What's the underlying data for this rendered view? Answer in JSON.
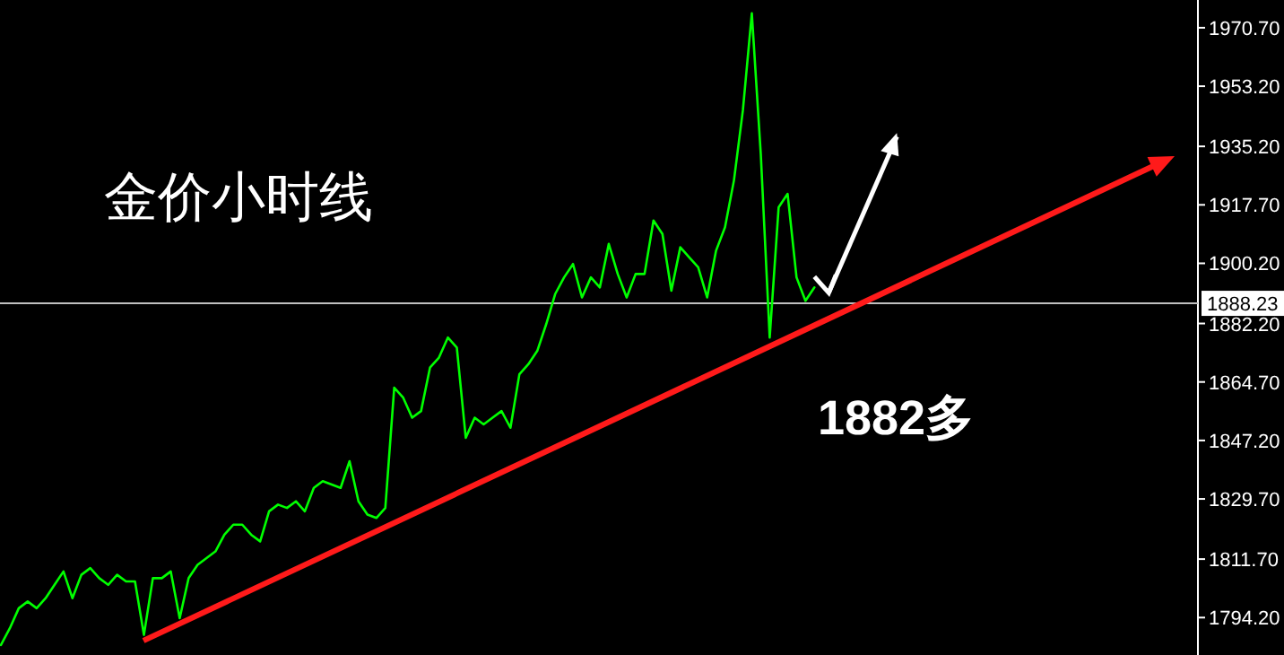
{
  "chart_data": {
    "type": "line",
    "title": "金价小时线",
    "annotations": [
      "1882多"
    ],
    "categories": [
      null,
      null,
      null,
      null,
      null,
      null,
      null,
      null,
      null,
      null,
      null,
      null,
      null,
      null,
      null,
      null,
      null,
      null,
      null,
      null,
      null,
      null,
      null,
      null,
      null,
      null,
      null,
      null,
      null,
      null,
      null,
      null,
      null,
      null,
      null,
      null,
      null,
      null,
      null,
      null,
      null,
      null,
      null,
      null,
      null,
      null,
      null,
      null,
      null,
      null,
      null,
      null,
      null,
      null,
      null,
      null,
      null,
      null,
      null,
      null,
      null,
      null,
      null,
      null,
      null,
      null,
      null,
      null,
      null,
      null,
      null,
      null,
      null,
      null,
      null,
      null,
      null,
      null,
      null,
      null,
      null,
      null,
      null,
      null,
      null,
      null,
      null,
      null,
      null,
      null,
      null,
      null,
      null,
      null,
      null,
      null,
      null,
      null,
      null,
      null,
      null,
      null,
      null,
      null,
      null,
      null,
      null,
      null,
      null,
      null,
      null,
      null,
      null,
      null,
      null,
      null,
      null,
      null,
      null,
      null,
      null,
      null,
      null,
      null,
      null,
      null,
      null,
      null,
      null,
      null,
      null,
      null,
      null,
      null
    ],
    "ylim": [
      1783,
      1979
    ],
    "yticks": [
      {
        "value": 1794.2,
        "label": "1794.20"
      },
      {
        "value": 1811.7,
        "label": "1811.70"
      },
      {
        "value": 1829.7,
        "label": "1829.70"
      },
      {
        "value": 1847.2,
        "label": "1847.20"
      },
      {
        "value": 1864.7,
        "label": "1864.70"
      },
      {
        "value": 1882.2,
        "label": "1882.20"
      },
      {
        "value": 1900.2,
        "label": "1900.20"
      },
      {
        "value": 1917.7,
        "label": "1917.70"
      },
      {
        "value": 1935.2,
        "label": "1935.20"
      },
      {
        "value": 1953.2,
        "label": "1953.20"
      },
      {
        "value": 1970.7,
        "label": "1970.70"
      }
    ],
    "tick_labels": "y",
    "ref_lines": [
      {
        "axis": "y",
        "value": 1888.23,
        "label": "1888.23",
        "color": "#c0c0c0"
      }
    ],
    "series": [
      {
        "color": "#00ff00",
        "values": [
          1786,
          1791,
          1797,
          1799,
          1797,
          1800,
          1804,
          1808,
          1800,
          1807,
          1809,
          1806,
          1804,
          1807,
          1805,
          1805,
          1789,
          1806,
          1806,
          1808,
          1794,
          1806,
          1810,
          1812,
          1814,
          1819,
          1822,
          1822,
          1819,
          1817,
          1826,
          1828,
          1827,
          1829,
          1826,
          1833,
          1835,
          1834,
          1833,
          1841,
          1829,
          1825,
          1824,
          1827,
          1863,
          1860,
          1854,
          1856,
          1869,
          1872,
          1878,
          1875,
          1848,
          1854,
          1852,
          1854,
          1856,
          1851,
          1867,
          1870,
          1874,
          1882,
          1891,
          1896,
          1900,
          1890,
          1896,
          1893,
          1906,
          1897,
          1890,
          1897,
          1897,
          1913,
          1909,
          1892,
          1905,
          1902,
          1899,
          1890,
          1904,
          1911,
          1925,
          1946,
          1975,
          1933,
          1878,
          1917,
          1921,
          1896,
          1889,
          1893,
          null,
          null,
          null,
          null,
          null,
          null,
          null,
          null,
          null,
          null,
          null,
          null,
          null,
          null,
          null,
          null,
          null,
          null,
          null,
          null,
          null,
          null,
          null,
          null,
          null,
          null,
          null,
          null,
          null,
          null,
          null,
          null,
          null,
          null,
          null,
          null,
          null,
          null,
          null,
          null,
          null,
          null
        ]
      }
    ]
  }
}
